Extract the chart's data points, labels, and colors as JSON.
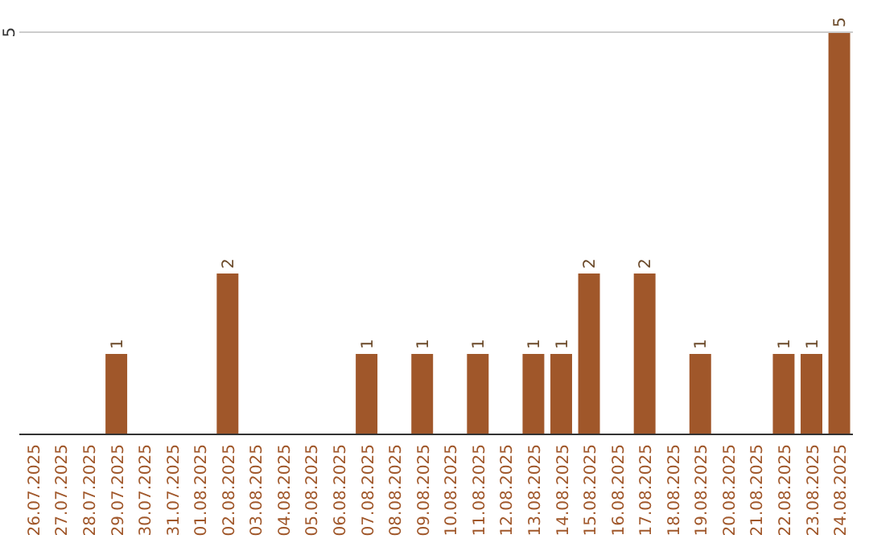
{
  "chart_data": {
    "type": "bar",
    "categories": [
      "26.07.2025",
      "27.07.2025",
      "28.07.2025",
      "29.07.2025",
      "30.07.2025",
      "31.07.2025",
      "01.08.2025",
      "02.08.2025",
      "03.08.2025",
      "04.08.2025",
      "05.08.2025",
      "06.08.2025",
      "07.08.2025",
      "08.08.2025",
      "09.08.2025",
      "10.08.2025",
      "11.08.2025",
      "12.08.2025",
      "13.08.2025",
      "14.08.2025",
      "15.08.2025",
      "16.08.2025",
      "17.08.2025",
      "18.08.2025",
      "19.08.2025",
      "20.08.2025",
      "21.08.2025",
      "22.08.2025",
      "23.08.2025",
      "24.08.2025"
    ],
    "values": [
      0,
      0,
      0,
      1,
      0,
      0,
      0,
      2,
      0,
      0,
      0,
      0,
      1,
      0,
      1,
      0,
      1,
      0,
      1,
      1,
      2,
      0,
      2,
      0,
      1,
      0,
      0,
      1,
      1,
      5
    ],
    "value_labels": [
      null,
      null,
      null,
      "1",
      null,
      null,
      null,
      "2",
      null,
      null,
      null,
      null,
      "1",
      null,
      "1",
      null,
      "1",
      null,
      "1",
      "1",
      "2",
      null,
      "2",
      null,
      "1",
      null,
      null,
      "1",
      "1",
      "5"
    ],
    "color": "#a0572a",
    "ylim": [
      0,
      5
    ],
    "yticks": [
      5
    ]
  }
}
